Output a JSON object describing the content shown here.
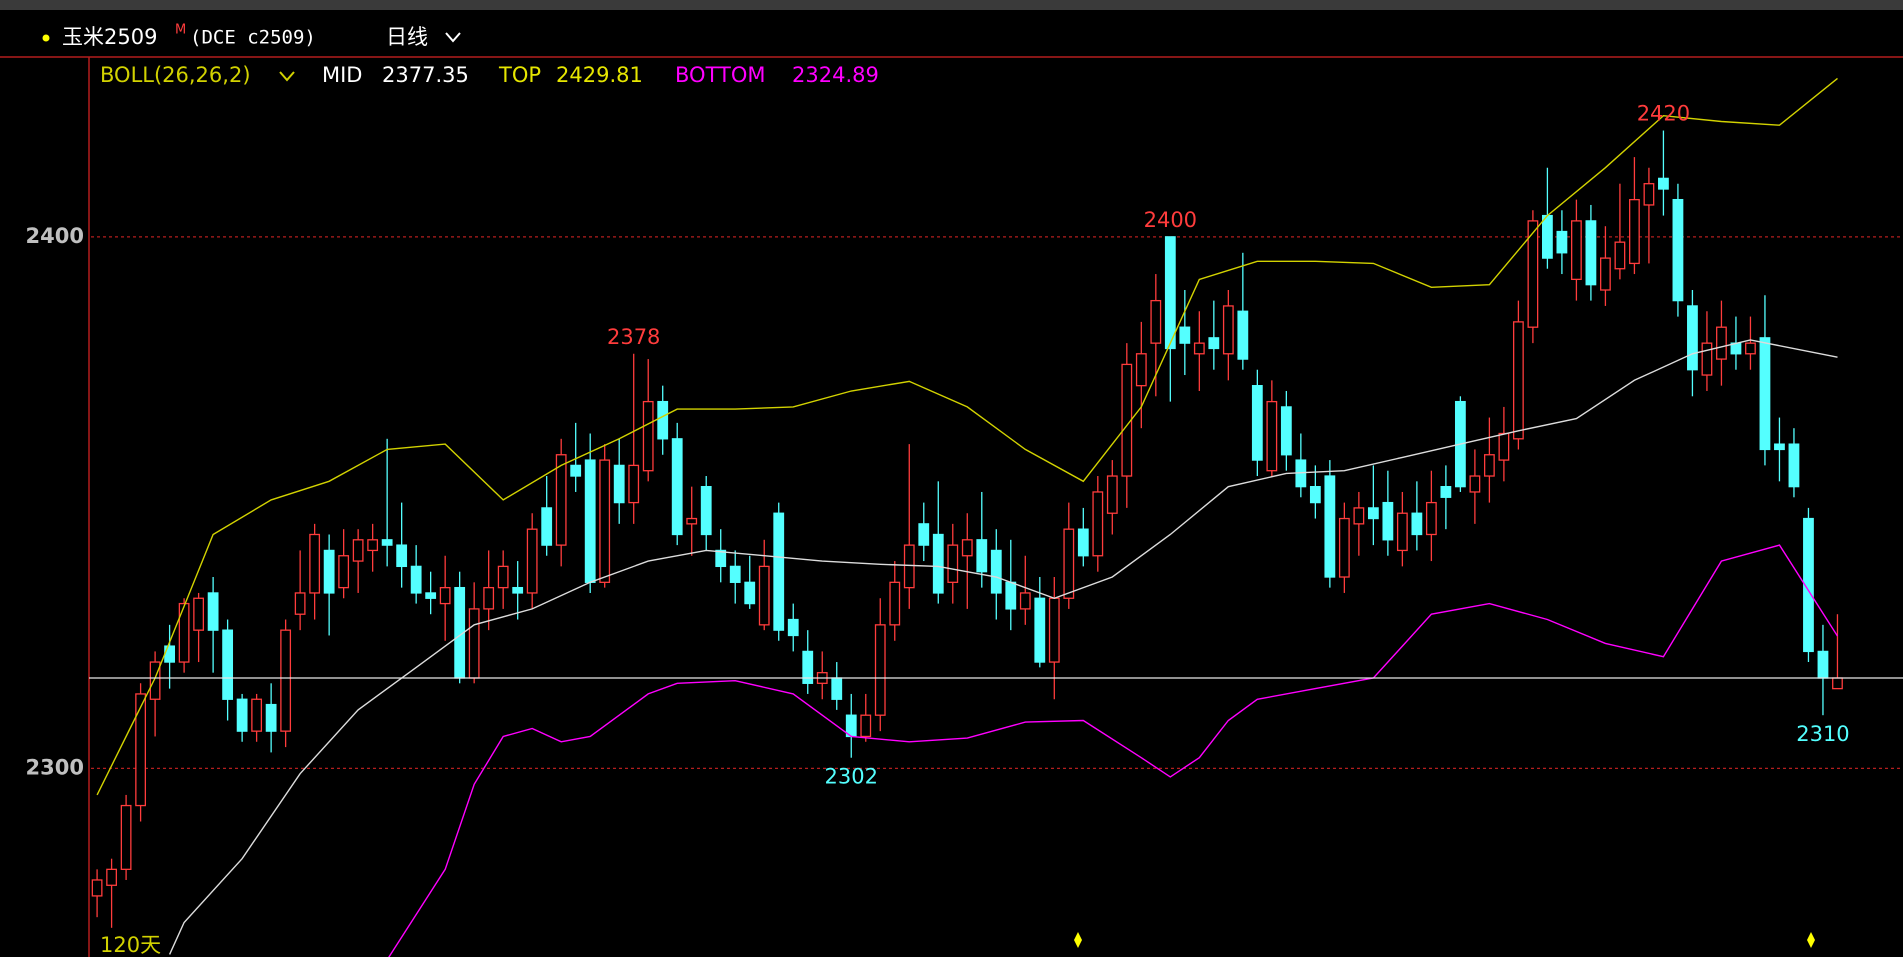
{
  "header": {
    "symbol": "玉米2509",
    "flag": "M",
    "contract": "(DCE c2509)",
    "period": "日线"
  },
  "chart_data": {
    "type": "candlestick",
    "indicator": "BOLL(26,26,2)",
    "period_label": "120天",
    "ylim": [
      2264.4,
      2433.6
    ],
    "yticks": [
      2300,
      2400
    ],
    "grid": true,
    "up_color": "#ff3c3c",
    "down_color": "#54ffff",
    "candles": [
      [
        2276,
        2281,
        2272,
        2279
      ],
      [
        2278,
        2283,
        2270,
        2281
      ],
      [
        2281,
        2295,
        2279,
        2293
      ],
      [
        2293,
        2316,
        2290,
        2314
      ],
      [
        2313,
        2322,
        2306,
        2320
      ],
      [
        2323,
        2327,
        2315,
        2320
      ],
      [
        2320,
        2332,
        2318,
        2331
      ],
      [
        2326,
        2333,
        2320,
        2332
      ],
      [
        2333,
        2336,
        2318,
        2326
      ],
      [
        2326,
        2328,
        2309,
        2313
      ],
      [
        2313,
        2314,
        2305,
        2307
      ],
      [
        2307,
        2314,
        2305,
        2313
      ],
      [
        2312,
        2316,
        2303,
        2307
      ],
      [
        2307,
        2328,
        2304,
        2326
      ],
      [
        2329,
        2341,
        2326,
        2333
      ],
      [
        2333,
        2346,
        2328,
        2344
      ],
      [
        2341,
        2344,
        2325,
        2333
      ],
      [
        2334,
        2345,
        2332,
        2340
      ],
      [
        2339,
        2345,
        2333,
        2343
      ],
      [
        2341,
        2346,
        2337,
        2343
      ],
      [
        2343,
        2362,
        2338,
        2342
      ],
      [
        2342,
        2350,
        2334,
        2338
      ],
      [
        2338,
        2342,
        2331,
        2333
      ],
      [
        2333,
        2337,
        2329,
        2332
      ],
      [
        2331,
        2340,
        2324,
        2334
      ],
      [
        2334,
        2337,
        2316,
        2317
      ],
      [
        2317,
        2335,
        2316,
        2330
      ],
      [
        2330,
        2341,
        2326,
        2334
      ],
      [
        2334,
        2341,
        2330,
        2338
      ],
      [
        2334,
        2339,
        2328,
        2333
      ],
      [
        2333,
        2348,
        2330,
        2345
      ],
      [
        2349,
        2355,
        2340,
        2342
      ],
      [
        2342,
        2362,
        2338,
        2359
      ],
      [
        2357,
        2365,
        2352,
        2355
      ],
      [
        2358,
        2363,
        2333,
        2335
      ],
      [
        2335,
        2361,
        2334,
        2358
      ],
      [
        2357,
        2362,
        2346,
        2350
      ],
      [
        2350,
        2378,
        2346,
        2357
      ],
      [
        2356,
        2377,
        2354,
        2369
      ],
      [
        2369,
        2372,
        2359,
        2362
      ],
      [
        2362,
        2365,
        2342,
        2344
      ],
      [
        2346,
        2353,
        2340,
        2347
      ],
      [
        2353,
        2355,
        2341,
        2344
      ],
      [
        2341,
        2345,
        2335,
        2338
      ],
      [
        2338,
        2341,
        2331,
        2335
      ],
      [
        2335,
        2340,
        2330,
        2331
      ],
      [
        2327,
        2343,
        2326,
        2338
      ],
      [
        2348,
        2350,
        2324,
        2326
      ],
      [
        2328,
        2331,
        2322,
        2325
      ],
      [
        2322,
        2326,
        2314,
        2316
      ],
      [
        2316,
        2322,
        2313,
        2318
      ],
      [
        2317,
        2320,
        2311,
        2313
      ],
      [
        2310,
        2314,
        2302,
        2306
      ],
      [
        2306,
        2314,
        2305,
        2310
      ],
      [
        2310,
        2332,
        2307,
        2327
      ],
      [
        2327,
        2339,
        2324,
        2335
      ],
      [
        2334,
        2361,
        2330,
        2342
      ],
      [
        2346,
        2350,
        2339,
        2342
      ],
      [
        2344,
        2354,
        2331,
        2333
      ],
      [
        2335,
        2346,
        2331,
        2342
      ],
      [
        2340,
        2348,
        2330,
        2343
      ],
      [
        2343,
        2352,
        2334,
        2337
      ],
      [
        2341,
        2345,
        2328,
        2333
      ],
      [
        2335,
        2343,
        2326,
        2330
      ],
      [
        2330,
        2340,
        2327,
        2333
      ],
      [
        2332,
        2336,
        2319,
        2320
      ],
      [
        2320,
        2336,
        2313,
        2332
      ],
      [
        2332,
        2350,
        2330,
        2345
      ],
      [
        2345,
        2349,
        2338,
        2340
      ],
      [
        2340,
        2355,
        2337,
        2352
      ],
      [
        2348,
        2358,
        2344,
        2355
      ],
      [
        2355,
        2380,
        2349,
        2376
      ],
      [
        2372,
        2384,
        2364,
        2378
      ],
      [
        2380,
        2393,
        2370,
        2388
      ],
      [
        2400,
        2400,
        2369,
        2379
      ],
      [
        2383,
        2390,
        2374,
        2380
      ],
      [
        2378,
        2386,
        2371,
        2380
      ],
      [
        2381,
        2388,
        2375,
        2379
      ],
      [
        2378,
        2390,
        2373,
        2387
      ],
      [
        2386,
        2397,
        2375,
        2377
      ],
      [
        2372,
        2375,
        2355,
        2358
      ],
      [
        2356,
        2373,
        2355,
        2369
      ],
      [
        2368,
        2371,
        2356,
        2359
      ],
      [
        2358,
        2363,
        2351,
        2353
      ],
      [
        2353,
        2357,
        2347,
        2350
      ],
      [
        2355,
        2358,
        2334,
        2336
      ],
      [
        2336,
        2350,
        2333,
        2347
      ],
      [
        2346,
        2352,
        2340,
        2349
      ],
      [
        2349,
        2357,
        2342,
        2347
      ],
      [
        2350,
        2356,
        2340,
        2343
      ],
      [
        2341,
        2352,
        2338,
        2348
      ],
      [
        2348,
        2354,
        2341,
        2344
      ],
      [
        2344,
        2356,
        2339,
        2350
      ],
      [
        2353,
        2357,
        2345,
        2351
      ],
      [
        2369,
        2370,
        2352,
        2353
      ],
      [
        2352,
        2360,
        2346,
        2355
      ],
      [
        2355,
        2366,
        2350,
        2359
      ],
      [
        2358,
        2368,
        2354,
        2363
      ],
      [
        2362,
        2388,
        2360,
        2384
      ],
      [
        2383,
        2405,
        2380,
        2403
      ],
      [
        2404,
        2413,
        2394,
        2396
      ],
      [
        2401,
        2405,
        2393,
        2397
      ],
      [
        2392,
        2407,
        2388,
        2403
      ],
      [
        2403,
        2406,
        2388,
        2391
      ],
      [
        2390,
        2402,
        2387,
        2396
      ],
      [
        2394,
        2410,
        2392,
        2399
      ],
      [
        2395,
        2415,
        2393,
        2407
      ],
      [
        2406,
        2413,
        2395,
        2410
      ],
      [
        2411,
        2420,
        2404,
        2409
      ],
      [
        2407,
        2410,
        2385,
        2388
      ],
      [
        2387,
        2390,
        2370,
        2375
      ],
      [
        2374,
        2386,
        2371,
        2380
      ],
      [
        2377,
        2388,
        2372,
        2383
      ],
      [
        2380,
        2385,
        2375,
        2378
      ],
      [
        2378,
        2385,
        2375,
        2380
      ],
      [
        2381,
        2389,
        2357,
        2360
      ],
      [
        2361,
        2366,
        2354,
        2360
      ],
      [
        2361,
        2364,
        2351,
        2353
      ],
      [
        2347,
        2349,
        2320,
        2322
      ],
      [
        2322,
        2327,
        2310,
        2317
      ],
      [
        2315,
        2329,
        2315,
        2317
      ]
    ],
    "series": [
      {
        "name": "MID",
        "color": "#dcdcdc",
        "x": [
          5,
          6,
          10,
          14,
          18,
          22,
          26,
          30,
          34,
          38,
          42,
          46,
          50,
          54,
          58,
          62,
          66,
          70,
          74,
          78,
          82,
          86,
          90,
          94,
          98,
          102,
          106,
          110,
          114,
          120
        ],
        "values": [
          2265,
          2271,
          2283,
          2299,
          2311,
          2319,
          2327,
          2330,
          2335,
          2339,
          2341,
          2340,
          2339,
          2338.4,
          2338,
          2336,
          2332,
          2336,
          2344,
          2353,
          2355.5,
          2356,
          2358.5,
          2361,
          2363.5,
          2365.8,
          2373,
          2378,
          2380.6,
          2377.35
        ]
      },
      {
        "name": "TOP",
        "color": "#d2d200",
        "x": [
          0,
          4,
          8,
          12,
          16,
          20,
          24,
          28,
          32,
          36,
          40,
          44,
          48,
          52,
          56,
          60,
          64,
          68,
          72,
          76,
          80,
          84,
          88,
          92,
          96,
          100,
          104,
          108,
          112,
          116,
          120
        ],
        "values": [
          2295,
          2317,
          2344,
          2350.5,
          2354,
          2360,
          2361,
          2350.5,
          2357,
          2362,
          2367.6,
          2367.6,
          2368,
          2371,
          2372.8,
          2368,
          2360,
          2354,
          2368,
          2392,
          2395.4,
          2395.4,
          2395,
          2390.5,
          2391,
          2404,
          2413,
          2422.8,
          2421.7,
          2421,
          2429.81
        ]
      },
      {
        "name": "BOTTOM",
        "color": "#ff00ff",
        "x": [
          20,
          24,
          26,
          28,
          30,
          32,
          34,
          36,
          38,
          40,
          44,
          48,
          52,
          56,
          60,
          64,
          68,
          72,
          74,
          76,
          78,
          80,
          84,
          88,
          92,
          96,
          100,
          104,
          108,
          112,
          116,
          120
        ],
        "values": [
          2264,
          2281,
          2297,
          2306,
          2307.5,
          2305,
          2306,
          2310,
          2314,
          2316,
          2316.5,
          2314,
          2306,
          2305,
          2305.7,
          2308.7,
          2309,
          2302,
          2298.4,
          2302,
          2309,
          2313,
          2315,
          2317,
          2329,
          2331,
          2328,
          2323.5,
          2321,
          2339,
          2342,
          2324.89
        ]
      }
    ]
  }
}
